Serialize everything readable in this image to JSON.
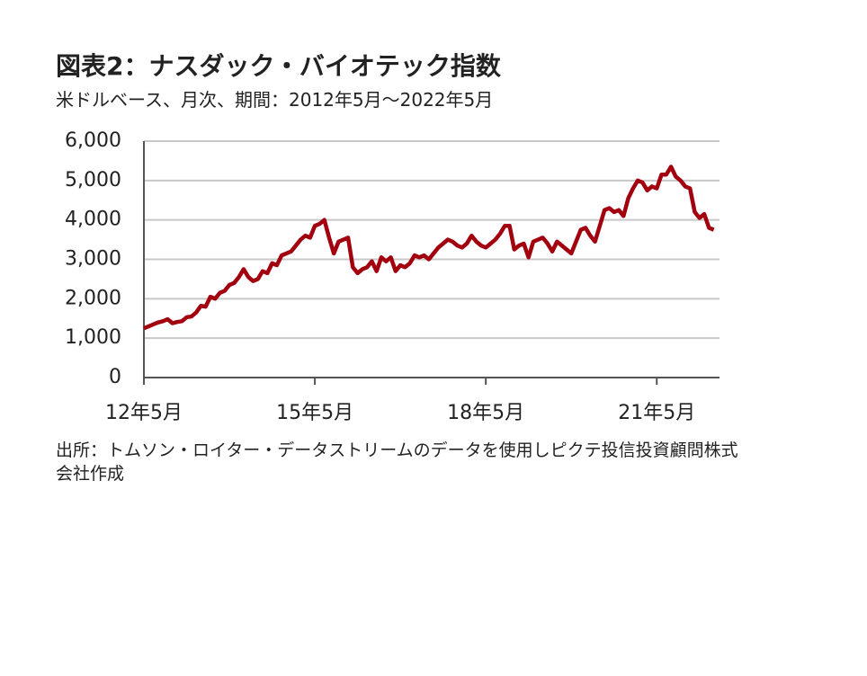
{
  "chart_data": {
    "type": "line",
    "title": "図表2：ナスダック・バイオテック指数",
    "subtitle": "米ドルベース、月次、期間：2012年5月～2022年5月",
    "source": "出所：トムソン・ロイター・データストリームのデータを使用しピクテ投信投資顧問株式会社作成",
    "categories": [
      "12年5月",
      null,
      null,
      null,
      null,
      null,
      null,
      null,
      null,
      null,
      null,
      null,
      null,
      null,
      null,
      null,
      null,
      null,
      null,
      null,
      null,
      null,
      null,
      null,
      null,
      null,
      null,
      null,
      null,
      null,
      null,
      null,
      null,
      null,
      null,
      null,
      "15年5月",
      null,
      null,
      null,
      null,
      null,
      null,
      null,
      null,
      null,
      null,
      null,
      null,
      null,
      null,
      null,
      null,
      null,
      null,
      null,
      null,
      null,
      null,
      null,
      null,
      null,
      null,
      null,
      null,
      null,
      null,
      null,
      null,
      null,
      null,
      null,
      "18年5月",
      null,
      null,
      null,
      null,
      null,
      null,
      null,
      null,
      null,
      null,
      null,
      null,
      null,
      null,
      null,
      null,
      null,
      null,
      null,
      null,
      null,
      null,
      null,
      null,
      null,
      null,
      null,
      null,
      null,
      null,
      null,
      null,
      null,
      null,
      null,
      "21年5月",
      null,
      null,
      null,
      null,
      null,
      null,
      null,
      null,
      null,
      null,
      null,
      null
    ],
    "series": [
      {
        "name": "ナスダック・バイオテック指数",
        "color": "#a3000f",
        "values": [
          1250,
          1300,
          1350,
          1400,
          1430,
          1480,
          1380,
          1410,
          1430,
          1530,
          1550,
          1650,
          1820,
          1800,
          2050,
          2000,
          2150,
          2200,
          2350,
          2400,
          2550,
          2750,
          2550,
          2450,
          2500,
          2700,
          2650,
          2900,
          2850,
          3100,
          3150,
          3200,
          3350,
          3500,
          3600,
          3550,
          3850,
          3900,
          4000,
          3550,
          3150,
          3450,
          3500,
          3550,
          2800,
          2650,
          2750,
          2800,
          2950,
          2700,
          3050,
          2950,
          3050,
          2700,
          2850,
          2800,
          2900,
          3100,
          3050,
          3100,
          3000,
          3150,
          3300,
          3400,
          3500,
          3450,
          3350,
          3300,
          3400,
          3600,
          3450,
          3350,
          3300,
          3400,
          3500,
          3650,
          3850,
          3850,
          3250,
          3350,
          3400,
          3050,
          3450,
          3500,
          3550,
          3400,
          3200,
          3450,
          3350,
          3250,
          3150,
          3450,
          3750,
          3800,
          3600,
          3450,
          3850,
          4250,
          4300,
          4200,
          4250,
          4100,
          4550,
          4800,
          5000,
          4950,
          4750,
          4850,
          4800,
          5150,
          5150,
          5350,
          5100,
          5000,
          4850,
          4800,
          4200,
          4050,
          4150,
          3800,
          3750
        ]
      }
    ],
    "ylim": [
      0,
      6000
    ],
    "yticks": [
      0,
      {
        "value": 1000,
        "label": "1,000"
      },
      {
        "value": 2000,
        "label": "2,000"
      },
      {
        "value": 3000,
        "label": "3,000"
      },
      {
        "value": 4000,
        "label": "4,000"
      },
      {
        "value": 5000,
        "label": "5,000"
      },
      {
        "value": 6000,
        "label": "6,000"
      }
    ],
    "grid": true
  }
}
